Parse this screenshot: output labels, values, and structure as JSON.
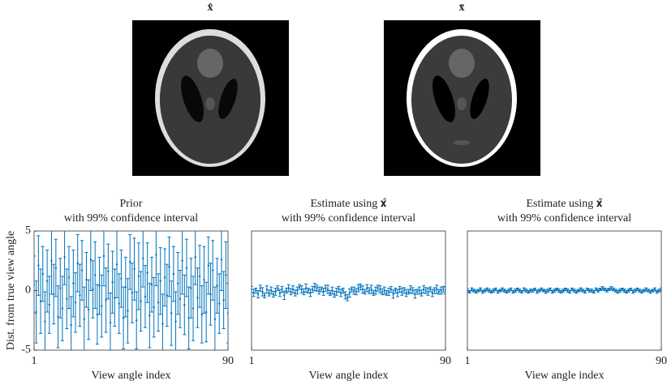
{
  "images": [
    {
      "title": "x̂"
    },
    {
      "title": "x̄"
    }
  ],
  "chart_data": [
    {
      "type": "errorbar",
      "title": "Prior",
      "subtitle": "with 99% confidence interval",
      "xlabel": "View angle index",
      "ylabel": "Dist. from true view angle",
      "color": "#0072bd",
      "x": [
        1,
        2,
        3,
        4,
        5,
        6,
        7,
        8,
        9,
        10,
        11,
        12,
        13,
        14,
        15,
        16,
        17,
        18,
        19,
        20,
        21,
        22,
        23,
        24,
        25,
        26,
        27,
        28,
        29,
        30,
        31,
        32,
        33,
        34,
        35,
        36,
        37,
        38,
        39,
        40,
        41,
        42,
        43,
        44,
        45,
        46,
        47,
        48,
        49,
        50,
        51,
        52,
        53,
        54,
        55,
        56,
        57,
        58,
        59,
        60,
        61,
        62,
        63,
        64,
        65,
        66,
        67,
        68,
        69,
        70,
        71,
        72,
        73,
        74,
        75,
        76,
        77,
        78,
        79,
        80,
        81,
        82,
        83,
        84,
        85,
        86,
        87,
        88,
        89,
        90
      ],
      "values": [
        0.5,
        -1.8,
        2.1,
        -0.9,
        1.4,
        -2.6,
        0.8,
        -1.2,
        2.5,
        -0.3,
        1.9,
        -2.2,
        0.2,
        -1.5,
        2.8,
        -0.7,
        1.1,
        -2.9,
        0.6,
        -1.0,
        2.3,
        -0.4,
        1.7,
        -2.4,
        0.9,
        -1.6,
        2.6,
        0.1,
        1.3,
        -2.0,
        0.4,
        -1.3,
        2.9,
        -0.8,
        1.6,
        -2.7,
        0.7,
        -0.6,
        2.2,
        -1.1,
        1.0,
        -2.3,
        0.3,
        -1.7,
        2.4,
        -0.2,
        1.8,
        -2.5,
        1.2,
        -0.9,
        2.7,
        -0.5,
        1.5,
        -2.1,
        0.5,
        -1.4,
        3.0,
        -1.0,
        0.8,
        -2.8,
        1.1,
        -0.4,
        2.0,
        -1.9,
        1.4,
        -2.6,
        0.6,
        -0.7,
        2.5,
        -1.2,
        1.9,
        -2.3,
        0.2,
        -1.5,
        2.8,
        -0.6,
        1.2,
        -2.0,
        0.9,
        -1.8,
        2.1,
        -0.3,
        1.7,
        -2.4,
        0.4,
        -1.1,
        2.6,
        -0.8,
        1.3,
        -1.9
      ],
      "errors": [
        2.4,
        2.6,
        2.5,
        2.7,
        2.3,
        2.5,
        2.6,
        2.4,
        2.8,
        2.5,
        2.4,
        2.6,
        2.5,
        2.7,
        2.3,
        2.5,
        2.6,
        2.4,
        2.8,
        2.5,
        2.4,
        2.6,
        2.5,
        2.7,
        2.3,
        2.5,
        2.6,
        2.4,
        2.8,
        2.5,
        2.4,
        2.6,
        2.5,
        2.7,
        2.3,
        2.5,
        2.6,
        2.4,
        2.8,
        2.5,
        2.4,
        2.6,
        2.5,
        2.7,
        2.3,
        2.5,
        2.6,
        2.4,
        2.8,
        2.5,
        2.4,
        2.6,
        2.5,
        2.7,
        2.3,
        2.5,
        2.6,
        2.4,
        2.8,
        2.5,
        2.4,
        2.6,
        2.5,
        2.7,
        2.3,
        2.5,
        2.6,
        2.4,
        2.8,
        2.5,
        2.4,
        2.6,
        2.5,
        2.7,
        2.3,
        2.5,
        2.6,
        2.4,
        2.8,
        2.5,
        2.4,
        2.6,
        2.5,
        2.7,
        2.3,
        2.5,
        2.6,
        2.4,
        2.8,
        2.5
      ],
      "xlim": [
        1,
        90
      ],
      "xticks": [
        1,
        90
      ],
      "ylim": [
        -5,
        5
      ],
      "yticks": [
        -5,
        0,
        5
      ]
    },
    {
      "type": "errorbar",
      "title": "Estimate using 𝐱̂",
      "subtitle": "with 99% confidence interval",
      "xlabel": "View angle index",
      "color": "#0072bd",
      "x": [
        1,
        2,
        3,
        4,
        5,
        6,
        7,
        8,
        9,
        10,
        11,
        12,
        13,
        14,
        15,
        16,
        17,
        18,
        19,
        20,
        21,
        22,
        23,
        24,
        25,
        26,
        27,
        28,
        29,
        30,
        31,
        32,
        33,
        34,
        35,
        36,
        37,
        38,
        39,
        40,
        41,
        42,
        43,
        44,
        45,
        46,
        47,
        48,
        49,
        50,
        51,
        52,
        53,
        54,
        55,
        56,
        57,
        58,
        59,
        60,
        61,
        62,
        63,
        64,
        65,
        66,
        67,
        68,
        69,
        70,
        71,
        72,
        73,
        74,
        75,
        76,
        77,
        78,
        79,
        80,
        81,
        82,
        83,
        84,
        85,
        86,
        87,
        88,
        89,
        90
      ],
      "values": [
        0.1,
        -0.2,
        0.0,
        -0.3,
        0.2,
        -0.1,
        -0.4,
        0.1,
        -0.2,
        0.0,
        -0.3,
        -0.1,
        0.2,
        -0.2,
        0.1,
        -0.4,
        0.0,
        0.2,
        -0.1,
        0.1,
        -0.2,
        0.0,
        0.3,
        0.1,
        -0.1,
        0.2,
        0.0,
        -0.2,
        0.1,
        0.3,
        0.2,
        0.0,
        0.1,
        -0.1,
        0.2,
        0.1,
        -0.2,
        0.0,
        -0.3,
        -0.1,
        0.1,
        -0.2,
        0.0,
        -0.4,
        -0.6,
        -0.2,
        0.1,
        0.0,
        -0.1,
        0.2,
        0.3,
        0.1,
        -0.1,
        0.2,
        0.0,
        0.1,
        -0.2,
        0.0,
        0.2,
        0.1,
        -0.1,
        0.0,
        -0.2,
        -0.1,
        0.1,
        -0.3,
        0.0,
        -0.2,
        0.1,
        -0.1,
        0.0,
        -0.2,
        -0.1,
        0.1,
        0.0,
        -0.3,
        -0.1,
        0.0,
        -0.2,
        0.1,
        0.0,
        -0.1,
        0.1,
        -0.2,
        0.0,
        0.1,
        -0.1,
        0.0,
        0.1,
        0.0
      ],
      "errors": [
        0.25,
        0.3,
        0.2,
        0.3,
        0.25,
        0.35,
        0.2,
        0.3,
        0.25,
        0.3,
        0.25,
        0.3,
        0.2,
        0.3,
        0.25,
        0.35,
        0.2,
        0.3,
        0.25,
        0.3,
        0.25,
        0.3,
        0.2,
        0.3,
        0.25,
        0.35,
        0.2,
        0.3,
        0.25,
        0.3,
        0.25,
        0.3,
        0.2,
        0.3,
        0.25,
        0.35,
        0.2,
        0.3,
        0.25,
        0.3,
        0.25,
        0.3,
        0.2,
        0.3,
        0.25,
        0.35,
        0.2,
        0.3,
        0.25,
        0.3,
        0.25,
        0.3,
        0.2,
        0.3,
        0.25,
        0.35,
        0.2,
        0.3,
        0.25,
        0.3,
        0.25,
        0.3,
        0.2,
        0.3,
        0.25,
        0.35,
        0.2,
        0.3,
        0.25,
        0.3,
        0.25,
        0.3,
        0.2,
        0.3,
        0.25,
        0.35,
        0.2,
        0.3,
        0.25,
        0.3,
        0.25,
        0.3,
        0.2,
        0.3,
        0.25,
        0.35,
        0.2,
        0.3,
        0.25,
        0.3
      ],
      "xlim": [
        1,
        90
      ],
      "xticks": [
        1,
        90
      ],
      "ylim": [
        -5,
        5
      ]
    },
    {
      "type": "errorbar",
      "title": "Estimate using 𝐱̄",
      "subtitle": "with 99% confidence interval",
      "xlabel": "View angle index",
      "color": "#0072bd",
      "x": [
        1,
        2,
        3,
        4,
        5,
        6,
        7,
        8,
        9,
        10,
        11,
        12,
        13,
        14,
        15,
        16,
        17,
        18,
        19,
        20,
        21,
        22,
        23,
        24,
        25,
        26,
        27,
        28,
        29,
        30,
        31,
        32,
        33,
        34,
        35,
        36,
        37,
        38,
        39,
        40,
        41,
        42,
        43,
        44,
        45,
        46,
        47,
        48,
        49,
        50,
        51,
        52,
        53,
        54,
        55,
        56,
        57,
        58,
        59,
        60,
        61,
        62,
        63,
        64,
        65,
        66,
        67,
        68,
        69,
        70,
        71,
        72,
        73,
        74,
        75,
        76,
        77,
        78,
        79,
        80,
        81,
        82,
        83,
        84,
        85,
        86,
        87,
        88,
        89,
        90
      ],
      "values": [
        0.0,
        -0.1,
        0.1,
        0.0,
        -0.1,
        0.0,
        0.1,
        -0.1,
        0.0,
        0.1,
        0.0,
        -0.1,
        0.0,
        0.1,
        -0.1,
        0.0,
        0.1,
        0.0,
        -0.1,
        0.0,
        0.1,
        -0.1,
        0.0,
        0.1,
        0.0,
        -0.1,
        0.1,
        0.0,
        -0.1,
        0.0,
        0.0,
        0.1,
        -0.1,
        0.0,
        0.1,
        0.0,
        -0.1,
        0.0,
        0.1,
        -0.1,
        0.0,
        0.1,
        0.0,
        -0.1,
        0.0,
        0.1,
        0.0,
        -0.1,
        0.1,
        0.0,
        -0.1,
        0.0,
        0.1,
        0.0,
        -0.1,
        0.1,
        0.0,
        0.0,
        -0.1,
        0.1,
        0.0,
        0.1,
        0.2,
        0.1,
        0.0,
        0.1,
        0.2,
        0.1,
        0.0,
        -0.1,
        0.0,
        0.1,
        0.0,
        -0.1,
        0.0,
        0.1,
        -0.1,
        0.0,
        0.1,
        0.0,
        -0.1,
        0.0,
        0.1,
        0.0,
        -0.1,
        0.0,
        0.1,
        -0.1,
        0.0,
        0.1
      ],
      "errors": [
        0.12,
        0.1,
        0.13,
        0.11,
        0.12,
        0.1,
        0.13,
        0.12,
        0.11,
        0.12,
        0.12,
        0.1,
        0.13,
        0.11,
        0.12,
        0.1,
        0.13,
        0.12,
        0.11,
        0.12,
        0.12,
        0.1,
        0.13,
        0.11,
        0.12,
        0.1,
        0.13,
        0.12,
        0.11,
        0.12,
        0.12,
        0.1,
        0.13,
        0.11,
        0.12,
        0.1,
        0.13,
        0.12,
        0.11,
        0.12,
        0.12,
        0.1,
        0.13,
        0.11,
        0.12,
        0.1,
        0.13,
        0.12,
        0.11,
        0.12,
        0.12,
        0.1,
        0.13,
        0.11,
        0.12,
        0.1,
        0.13,
        0.12,
        0.11,
        0.12,
        0.12,
        0.1,
        0.13,
        0.11,
        0.12,
        0.1,
        0.13,
        0.12,
        0.11,
        0.12,
        0.12,
        0.1,
        0.13,
        0.11,
        0.12,
        0.1,
        0.13,
        0.12,
        0.11,
        0.12,
        0.12,
        0.1,
        0.13,
        0.11,
        0.12,
        0.1,
        0.13,
        0.12,
        0.11,
        0.12
      ],
      "xlim": [
        1,
        90
      ],
      "xticks": [
        1,
        90
      ],
      "ylim": [
        -5,
        5
      ]
    }
  ]
}
